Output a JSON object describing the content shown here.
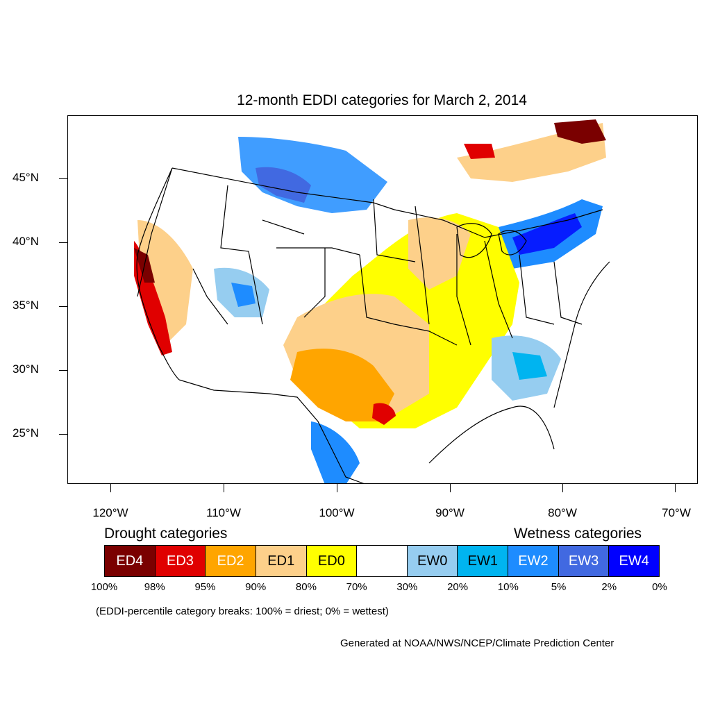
{
  "title": "12-month EDDI categories for March 2, 2014",
  "lat_labels": [
    "45°N",
    "40°N",
    "35°N",
    "30°N",
    "25°N"
  ],
  "lon_labels": [
    "120°W",
    "110°W",
    "100°W",
    "90°W",
    "80°W",
    "70°W"
  ],
  "legend": {
    "drought_heading": "Drought categories",
    "wetness_heading": "Wetness categories",
    "categories": [
      {
        "label": "ED4",
        "color": "#7a0000",
        "text_color": "#ffffff"
      },
      {
        "label": "ED3",
        "color": "#e00000",
        "text_color": "#ffffff"
      },
      {
        "label": "ED2",
        "color": "#ffa500",
        "text_color": "#ffffff"
      },
      {
        "label": "ED1",
        "color": "#fdd08a",
        "text_color": "#000000"
      },
      {
        "label": "ED0",
        "color": "#ffff00",
        "text_color": "#000000"
      },
      {
        "label": "",
        "color": "#ffffff",
        "text_color": "#000000"
      },
      {
        "label": "EW0",
        "color": "#96cdf0",
        "text_color": "#000000"
      },
      {
        "label": "EW1",
        "color": "#00b4f0",
        "text_color": "#000000"
      },
      {
        "label": "EW2",
        "color": "#1e8cff",
        "text_color": "#ffffff"
      },
      {
        "label": "EW3",
        "color": "#4169e1",
        "text_color": "#ffffff"
      },
      {
        "label": "EW4",
        "color": "#0000ff",
        "text_color": "#ffffff"
      }
    ],
    "breaks": [
      "100%",
      "98%",
      "95%",
      "90%",
      "80%",
      "70%",
      "30%",
      "20%",
      "10%",
      "5%",
      "2%",
      "0%"
    ]
  },
  "note": "(EDDI-percentile category breaks: 100% = driest; 0% = wettest)",
  "credit": "Generated at NOAA/NWS/NCEP/Climate Prediction Center"
}
